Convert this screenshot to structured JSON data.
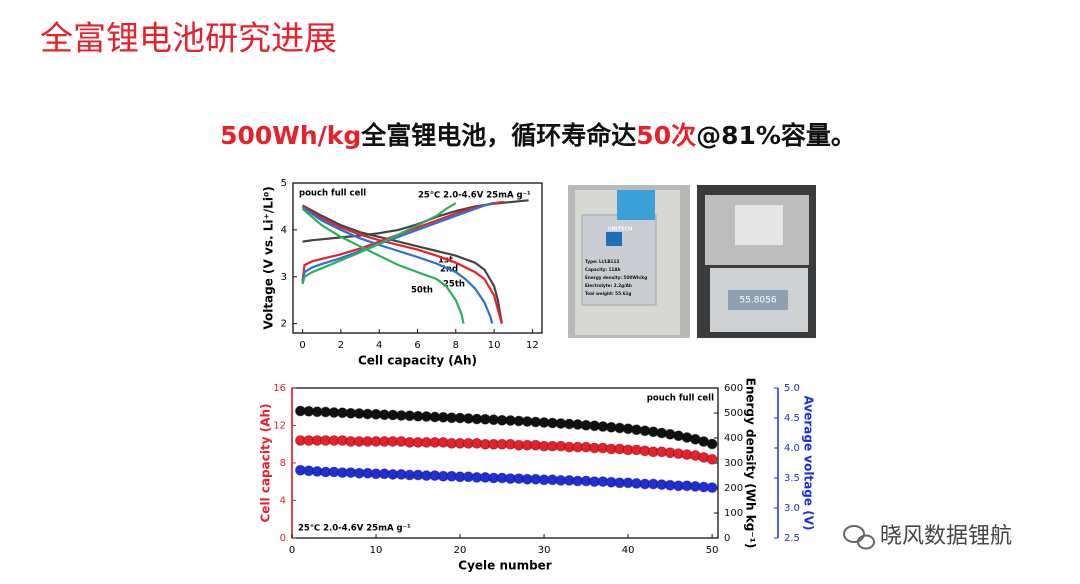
{
  "title": "全富锂电池研究进展",
  "headline": [
    {
      "text": "500Wh/kg",
      "color": "#e8202a"
    },
    {
      "text": "全富锂电池，循环寿命达",
      "color": "#111111"
    },
    {
      "text": "50次",
      "color": "#e8202a"
    },
    {
      "text": "@81%容量。",
      "color": "#111111"
    }
  ],
  "photo_labels": [
    "CNITECH",
    "Type: Li/LB113",
    "Capacity: 11Ah",
    "Energy density: 500Wh/kg",
    "Electrolyte: 2.2g/Ah",
    "Toal weight: 55.61g"
  ],
  "scale_reading": "55.8056",
  "watermark": "晓风数据锂航",
  "chart_data": [
    {
      "type": "line",
      "annotations": [
        "pouch full cell",
        "25℃  2.0-4.6V  25mA g⁻¹"
      ],
      "xlabel": "Cell capacity (Ah)",
      "ylabel": "Voltage (V vs. Li⁺/Li⁰)",
      "xlim": [
        -0.5,
        12.5
      ],
      "xticks": [
        0,
        2,
        4,
        6,
        8,
        10,
        12
      ],
      "ylim": [
        1.8,
        5
      ],
      "yticks": [
        2,
        3,
        4,
        5
      ],
      "series": [
        {
          "name": "1st",
          "color": "#444444",
          "charge": {
            "x": [
              0,
              0.5,
              1,
              2,
              3,
              4,
              5,
              6,
              7,
              8,
              9,
              10,
              11,
              11.8
            ],
            "values": [
              3.75,
              3.78,
              3.8,
              3.84,
              3.88,
              3.93,
              4.0,
              4.12,
              4.28,
              4.4,
              4.5,
              4.56,
              4.6,
              4.63
            ]
          },
          "discharge": {
            "x": [
              0,
              1,
              2,
              3,
              4,
              5,
              6,
              7,
              8,
              9,
              9.5,
              10,
              10.2,
              10.4
            ],
            "values": [
              4.52,
              4.3,
              4.1,
              3.95,
              3.85,
              3.75,
              3.65,
              3.55,
              3.45,
              3.3,
              3.15,
              2.8,
              2.5,
              2.0
            ]
          }
        },
        {
          "name": "2nd",
          "color": "#e8202a",
          "charge": {
            "x": [
              0,
              0.1,
              0.5,
              1,
              2,
              3,
              4,
              5,
              6,
              7,
              8,
              9,
              10,
              10.5
            ],
            "values": [
              2.9,
              3.25,
              3.33,
              3.38,
              3.48,
              3.6,
              3.75,
              3.9,
              4.05,
              4.2,
              4.35,
              4.48,
              4.57,
              4.6
            ]
          },
          "discharge": {
            "x": [
              0,
              1,
              2,
              3,
              4,
              5,
              6,
              7,
              8,
              9,
              9.5,
              10,
              10.2,
              10.4
            ],
            "values": [
              4.5,
              4.25,
              4.05,
              3.9,
              3.78,
              3.68,
              3.58,
              3.45,
              3.3,
              3.1,
              2.95,
              2.6,
              2.3,
              2.0
            ]
          }
        },
        {
          "name": "25th",
          "color": "#2a6fdb",
          "charge": {
            "x": [
              0,
              0.1,
              0.5,
              1,
              2,
              3,
              4,
              5,
              6,
              7,
              8,
              9,
              9.5,
              10
            ],
            "values": [
              2.85,
              3.1,
              3.2,
              3.27,
              3.4,
              3.55,
              3.7,
              3.85,
              4.0,
              4.15,
              4.3,
              4.45,
              4.52,
              4.58
            ]
          },
          "discharge": {
            "x": [
              0,
              1,
              2,
              3,
              4,
              5,
              6,
              7,
              8,
              8.5,
              9,
              9.5,
              9.8,
              9.9
            ],
            "values": [
              4.48,
              4.2,
              4.0,
              3.82,
              3.68,
              3.55,
              3.42,
              3.28,
              3.1,
              2.95,
              2.75,
              2.45,
              2.15,
              2.0
            ]
          }
        },
        {
          "name": "50th",
          "color": "#2bb05a",
          "charge": {
            "x": [
              0,
              0.1,
              0.5,
              1,
              2,
              3,
              4,
              5,
              6,
              7,
              7.5,
              8
            ],
            "values": [
              2.85,
              3.0,
              3.1,
              3.18,
              3.35,
              3.52,
              3.7,
              3.9,
              4.1,
              4.3,
              4.45,
              4.57
            ]
          },
          "discharge": {
            "x": [
              0,
              1,
              2,
              3,
              4,
              5,
              6,
              7,
              7.5,
              8,
              8.3,
              8.4
            ],
            "values": [
              4.45,
              4.1,
              3.85,
              3.65,
              3.45,
              3.25,
              3.1,
              2.95,
              2.8,
              2.5,
              2.2,
              2.0
            ]
          }
        }
      ]
    },
    {
      "type": "scatter",
      "annotations": [
        "pouch full cell",
        "25℃  2.0-4.6V  25mA g⁻¹"
      ],
      "xlabel": "Cyele number",
      "ylabel": "Cell capacity (Ah)",
      "y2label": "Energy density (Wh kg⁻¹)",
      "y3label": "Average voltage (V)",
      "xlim": [
        0,
        50.7
      ],
      "xticks": [
        0,
        10,
        20,
        30,
        40,
        50
      ],
      "ylim": [
        0,
        16
      ],
      "yticks": [
        0,
        4,
        8,
        12,
        16
      ],
      "y2lim": [
        0,
        600
      ],
      "y2ticks": [
        0,
        100,
        200,
        300,
        400,
        500,
        600
      ],
      "y3lim": [
        2.5,
        5.0
      ],
      "y3ticks": [
        2.5,
        {
          "value": 3,
          "label": "3.0"
        },
        3.5,
        {
          "value": 4,
          "label": "4.0"
        },
        4.5,
        {
          "value": 5,
          "label": "5.0"
        }
      ],
      "x": [
        1,
        2,
        3,
        4,
        5,
        6,
        7,
        8,
        9,
        10,
        11,
        12,
        13,
        14,
        15,
        16,
        17,
        18,
        19,
        20,
        21,
        22,
        23,
        24,
        25,
        26,
        27,
        28,
        29,
        30,
        31,
        32,
        33,
        34,
        35,
        36,
        37,
        38,
        39,
        40,
        41,
        42,
        43,
        44,
        45,
        46,
        47,
        48,
        49,
        50
      ],
      "series": [
        {
          "color": "#111111",
          "axis": "y2",
          "values": [
            508,
            507,
            505,
            504,
            502,
            501,
            499,
            498,
            496,
            495,
            493,
            492,
            490,
            489,
            487,
            486,
            484,
            483,
            481,
            480,
            478,
            476,
            475,
            473,
            471,
            470,
            468,
            466,
            464,
            462,
            460,
            458,
            456,
            454,
            451,
            449,
            446,
            443,
            440,
            437,
            433,
            429,
            425,
            420,
            415,
            409,
            402,
            395,
            386,
            376
          ]
        },
        {
          "color": "#e8202a",
          "axis": "y",
          "values": [
            10.4,
            10.4,
            10.4,
            10.4,
            10.4,
            10.4,
            10.3,
            10.3,
            10.3,
            10.3,
            10.3,
            10.3,
            10.3,
            10.2,
            10.2,
            10.2,
            10.2,
            10.2,
            10.1,
            10.1,
            10.1,
            10.1,
            10.0,
            10.0,
            10.0,
            10.0,
            9.9,
            9.9,
            9.9,
            9.8,
            9.8,
            9.8,
            9.7,
            9.7,
            9.7,
            9.6,
            9.6,
            9.5,
            9.5,
            9.4,
            9.4,
            9.3,
            9.2,
            9.2,
            9.1,
            9.0,
            8.9,
            8.8,
            8.6,
            8.4
          ]
        },
        {
          "color": "#1f2fd6",
          "axis": "y3",
          "values": [
            3.63,
            3.62,
            3.61,
            3.6,
            3.6,
            3.59,
            3.59,
            3.58,
            3.58,
            3.57,
            3.57,
            3.56,
            3.56,
            3.55,
            3.55,
            3.54,
            3.54,
            3.53,
            3.53,
            3.52,
            3.52,
            3.51,
            3.51,
            3.5,
            3.5,
            3.49,
            3.49,
            3.48,
            3.48,
            3.47,
            3.47,
            3.46,
            3.46,
            3.45,
            3.45,
            3.44,
            3.44,
            3.43,
            3.42,
            3.42,
            3.41,
            3.4,
            3.4,
            3.39,
            3.38,
            3.37,
            3.37,
            3.36,
            3.35,
            3.34
          ]
        }
      ]
    }
  ]
}
